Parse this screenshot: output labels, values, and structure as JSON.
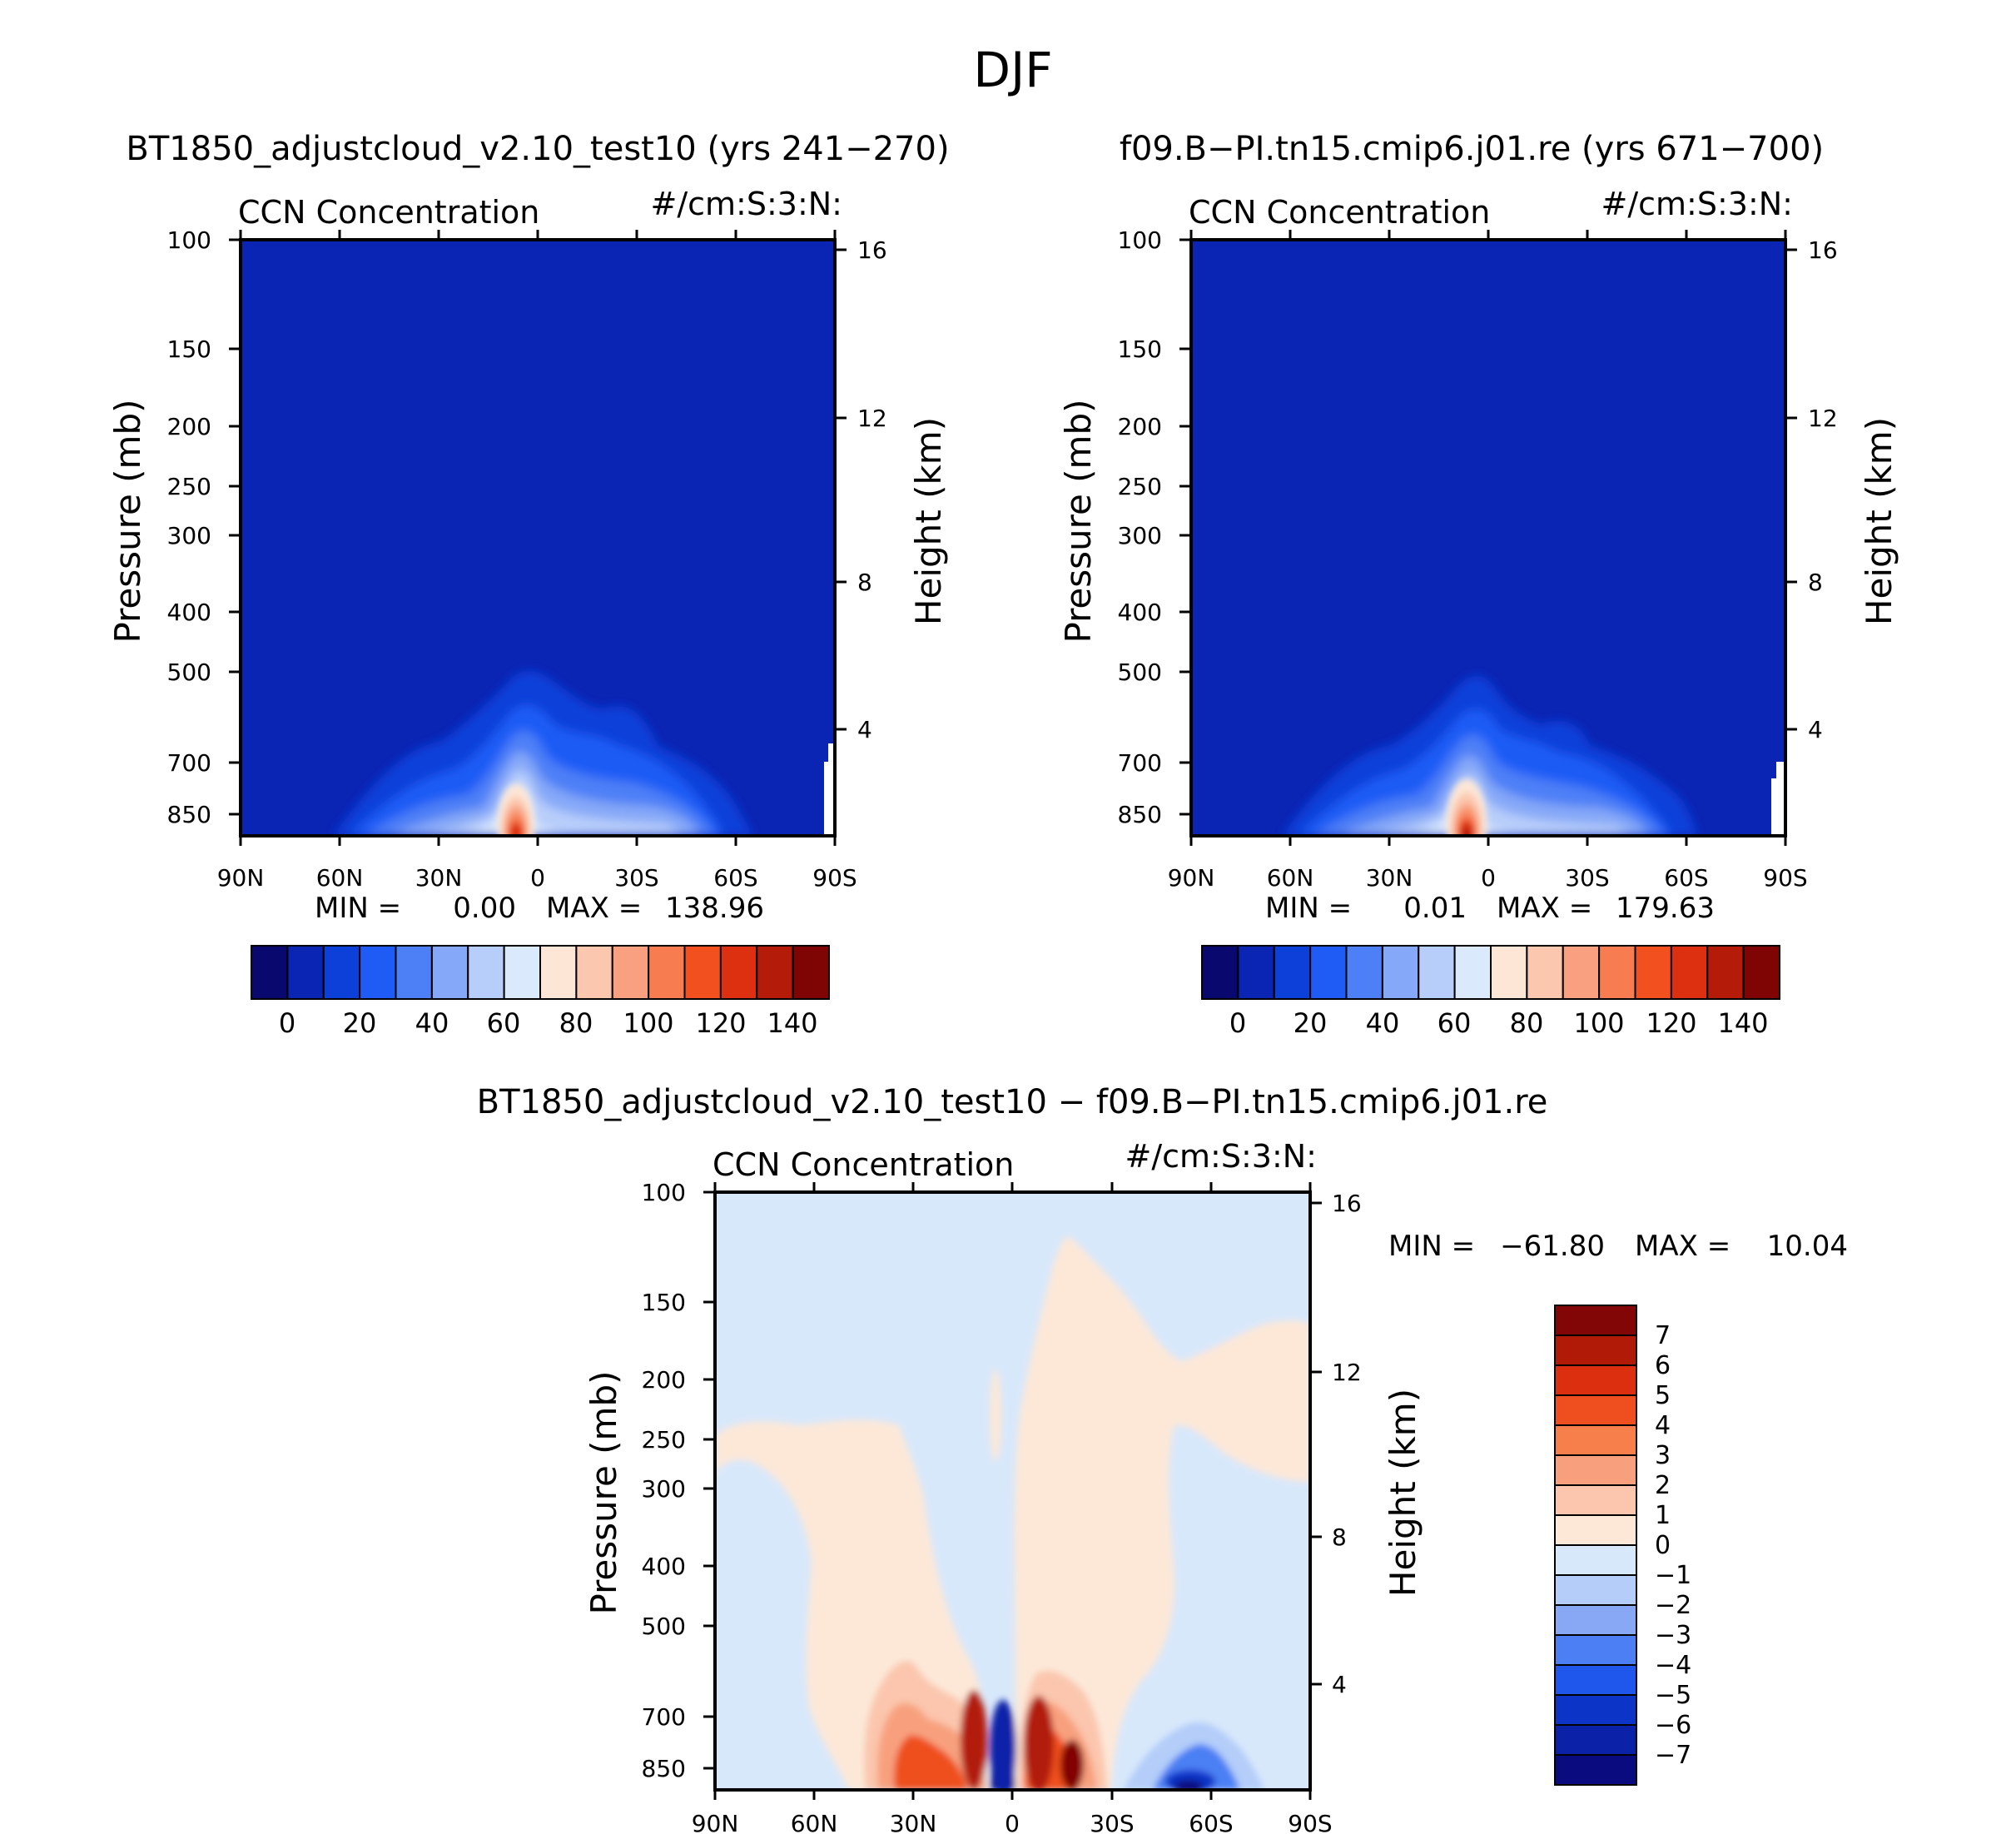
{
  "figure": {
    "title": "DJF"
  },
  "colors": {
    "seq": [
      "#08086e",
      "#0a24b4",
      "#0d3fd9",
      "#1f5cf5",
      "#4d7ff7",
      "#86a8f8",
      "#b8cefa",
      "#dbe9fc",
      "#fde6d6",
      "#fbc7ae",
      "#f9a080",
      "#f77c50",
      "#f2501f",
      "#dd3010",
      "#b41b08",
      "#7f0505"
    ],
    "div": [
      "#0b0b80",
      "#0b22a8",
      "#0c35c7",
      "#1f56ec",
      "#4c7ff4",
      "#88a8f6",
      "#b4cdf9",
      "#d8e8fb",
      "#fde8d8",
      "#fbc6ad",
      "#f8a07e",
      "#f67f4c",
      "#ef4f1f",
      "#db2f0f",
      "#b21a08",
      "#820606"
    ]
  },
  "chart_data": [
    {
      "type": "heatmap",
      "panel": "top-left",
      "title": "BT1850_adjustcloud_v2.10_test10 (yrs 241−270)",
      "left_label": "CCN Concentration",
      "right_label": "#/cm:S:3:N:",
      "ylabel": "Pressure (mb)",
      "y2label": "Height (km)",
      "x_ticks": [
        "90N",
        "60N",
        "30N",
        "0",
        "30S",
        "60S",
        "90S"
      ],
      "y_ticks": [
        "100",
        "150",
        "200",
        "250",
        "300",
        "400",
        "500",
        "700",
        "850"
      ],
      "y2_ticks": [
        "16",
        "12",
        "8",
        "4"
      ],
      "stats": {
        "min_label": "MIN =",
        "min_value": "0.00",
        "max_label": "MAX =",
        "max_value": "138.96"
      },
      "colorbar": {
        "orientation": "horizontal",
        "labels": [
          "0",
          "20",
          "40",
          "60",
          "80",
          "100",
          "120",
          "140"
        ]
      },
      "summary": {
        "min": 0.0,
        "max": 138.96,
        "peak_lat": "10N",
        "peak_pressure_mb": 900
      }
    },
    {
      "type": "heatmap",
      "panel": "top-right",
      "title": "f09.B−PI.tn15.cmip6.j01.re (yrs 671−700)",
      "left_label": "CCN Concentration",
      "right_label": "#/cm:S:3:N:",
      "ylabel": "Pressure (mb)",
      "y2label": "Height (km)",
      "x_ticks": [
        "90N",
        "60N",
        "30N",
        "0",
        "30S",
        "60S",
        "90S"
      ],
      "y_ticks": [
        "100",
        "150",
        "200",
        "250",
        "300",
        "400",
        "500",
        "700",
        "850"
      ],
      "y2_ticks": [
        "16",
        "12",
        "8",
        "4"
      ],
      "stats": {
        "min_label": "MIN =",
        "min_value": "0.01",
        "max_label": "MAX =",
        "max_value": "179.63"
      },
      "colorbar": {
        "orientation": "horizontal",
        "labels": [
          "0",
          "20",
          "40",
          "60",
          "80",
          "100",
          "120",
          "140"
        ]
      },
      "summary": {
        "min": 0.01,
        "max": 179.63,
        "peak_lat": "10N",
        "peak_pressure_mb": 900
      }
    },
    {
      "type": "heatmap",
      "panel": "bottom",
      "title": "BT1850_adjustcloud_v2.10_test10 − f09.B−PI.tn15.cmip6.j01.re",
      "left_label": "CCN Concentration",
      "right_label": "#/cm:S:3:N:",
      "ylabel": "Pressure (mb)",
      "y2label": "Height (km)",
      "x_ticks": [
        "90N",
        "60N",
        "30N",
        "0",
        "30S",
        "60S",
        "90S"
      ],
      "y_ticks": [
        "100",
        "150",
        "200",
        "250",
        "300",
        "400",
        "500",
        "700",
        "850"
      ],
      "y2_ticks": [
        "16",
        "12",
        "8",
        "4"
      ],
      "stats": {
        "min_label": "MIN =",
        "min_value": "−61.80",
        "max_label": "MAX =",
        "max_value": "10.04"
      },
      "colorbar": {
        "orientation": "vertical",
        "labels": [
          "7",
          "6",
          "5",
          "4",
          "3",
          "2",
          "1",
          "0",
          "−1",
          "−2",
          "−3",
          "−4",
          "−5",
          "−6",
          "−7"
        ]
      },
      "summary": {
        "min": -61.8,
        "max": 10.04
      }
    }
  ]
}
